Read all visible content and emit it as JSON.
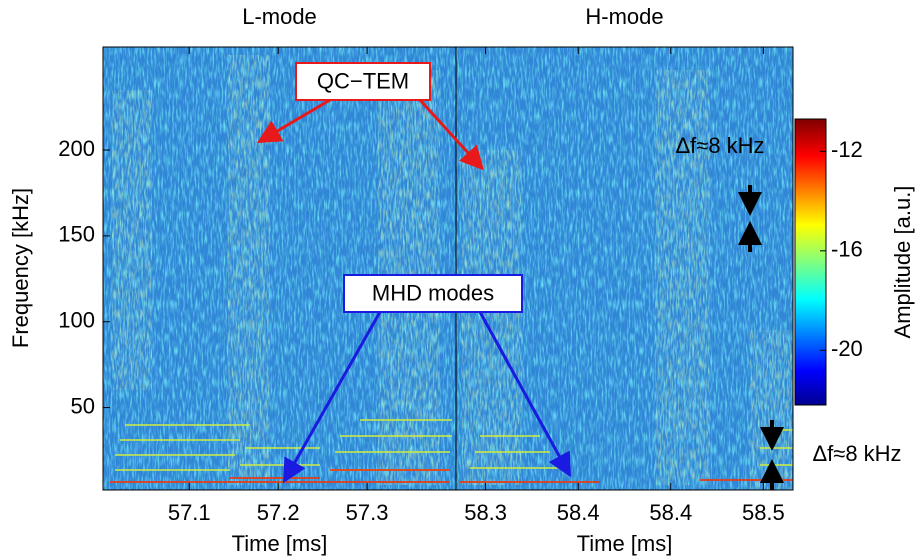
{
  "chart_data": [
    {
      "type": "spectrogram",
      "title": "L-mode",
      "xlabel": "Time [ms]",
      "ylabel": "Frequency [kHz]",
      "xlim": [
        57.003,
        57.4
      ],
      "xticks": [
        57.1,
        57.2,
        57.3
      ],
      "ylim": [
        2,
        260
      ],
      "yticks": [
        50,
        100,
        150,
        200
      ]
    },
    {
      "type": "spectrogram",
      "title": "H-mode",
      "xlabel": "Time [ms]",
      "xlim": [
        58.284,
        58.466
      ],
      "xticks": [
        58.3,
        {
          "value": 58.35,
          "label": "58.4"
        },
        58.4,
        {
          "value": 58.45,
          "label": "58.5"
        }
      ],
      "ylim": [
        2,
        260
      ]
    }
  ],
  "colorbar": {
    "label": "Amplitude [a.u.]",
    "ylim": [
      -22.2,
      -10.7
    ],
    "yticks": [
      -12,
      -16,
      -20
    ]
  },
  "annotations": [
    {
      "text": "QC−TEM",
      "color": "#e8191a"
    },
    {
      "text": "MHD modes",
      "color": "#1a1ae0"
    },
    {
      "text": "Δf≈8 kHz",
      "color": "#000000"
    },
    {
      "text": "Δf≈8 kHz",
      "color": "#000000"
    }
  ]
}
